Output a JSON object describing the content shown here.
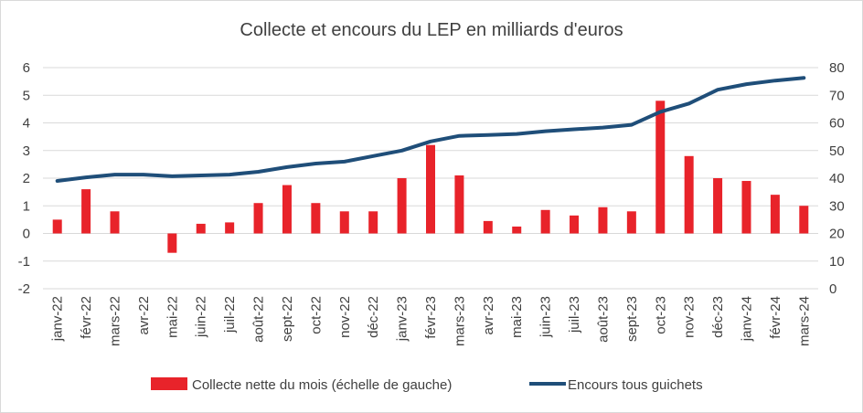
{
  "chart_data": {
    "type": "bar+line",
    "title": "Collecte et encours du LEP en milliards d'euros",
    "categories": [
      "janv-22",
      "févr-22",
      "mars-22",
      "avr-22",
      "mai-22",
      "juin-22",
      "juil-22",
      "août-22",
      "sept-22",
      "oct-22",
      "nov-22",
      "déc-22",
      "janv-23",
      "févr-23",
      "mars-23",
      "avr-23",
      "mai-23",
      "juin-23",
      "juil-23",
      "août-23",
      "sept-23",
      "oct-23",
      "nov-23",
      "déc-23",
      "janv-24",
      "févr-24",
      "mars-24"
    ],
    "left_axis": {
      "ylim": [
        -2,
        6
      ],
      "ticks": [
        "-2",
        "-1",
        "0",
        "1",
        "2",
        "3",
        "4",
        "5",
        "6"
      ]
    },
    "right_axis": {
      "ylim": [
        0,
        80
      ],
      "ticks": [
        "0",
        "10",
        "20",
        "30",
        "40",
        "50",
        "60",
        "70",
        "80"
      ]
    },
    "series": [
      {
        "name": "Collecte nette du mois (échelle de gauche)",
        "type": "bar",
        "axis": "left",
        "color": "#e8232a",
        "values": [
          0.5,
          1.6,
          0.8,
          0.0,
          -0.7,
          0.35,
          0.4,
          1.1,
          1.75,
          1.1,
          0.8,
          0.8,
          2.0,
          3.2,
          2.1,
          0.45,
          0.25,
          0.85,
          0.65,
          0.95,
          0.8,
          4.8,
          2.8,
          2.0,
          1.9,
          1.4,
          1.0
        ]
      },
      {
        "name": "Encours tous guichets",
        "type": "line",
        "axis": "right",
        "color": "#1f4e79",
        "values": [
          39,
          40.3,
          41.3,
          41.3,
          40.7,
          41,
          41.3,
          42.3,
          44,
          45.3,
          46,
          48,
          50,
          53.3,
          55.3,
          55.6,
          56,
          57,
          57.7,
          58.3,
          59.3,
          64,
          67,
          72,
          74,
          75.3,
          76.3
        ]
      }
    ],
    "legend_position": "bottom",
    "grid": true
  }
}
